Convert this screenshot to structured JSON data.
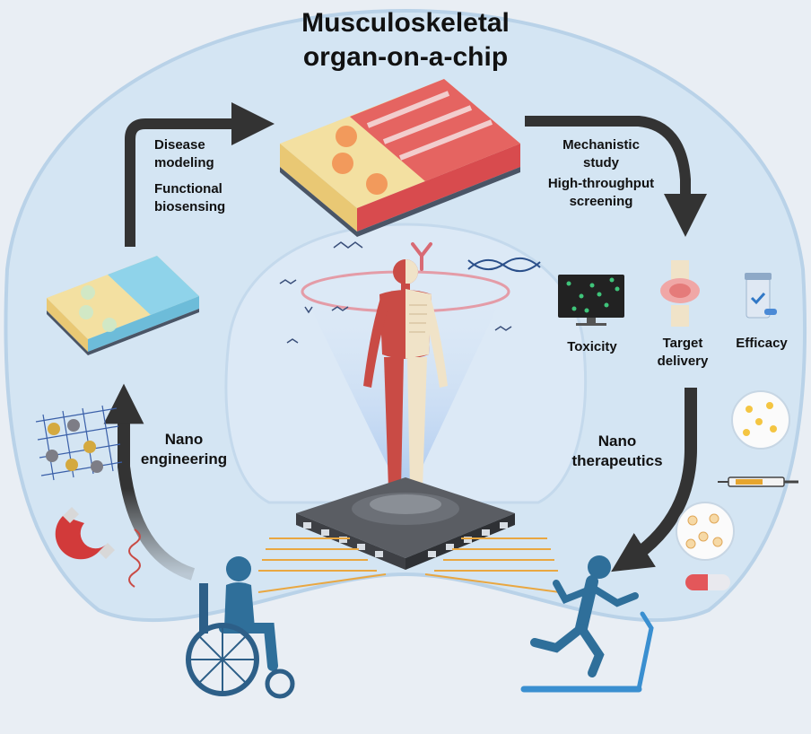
{
  "title": {
    "line1": "Musculoskeletal",
    "line2": "organ-on-a-chip"
  },
  "top_left_labels": {
    "disease_line1": "Disease",
    "disease_line2": "modeling",
    "functional_line1": "Functional",
    "functional_line2": "biosensing"
  },
  "top_right_labels": {
    "mechanistic_line1": "Mechanistic",
    "mechanistic_line2": "study",
    "screening_line1": "High-throughput",
    "screening_line2": "screening"
  },
  "outcomes": {
    "toxicity": "Toxicity",
    "target_line1": "Target",
    "target_line2": "delivery",
    "efficacy": "Efficacy"
  },
  "left_arc": {
    "line1": "Nano",
    "line2": "engineering"
  },
  "right_arc": {
    "line1": "Nano",
    "line2": "therapeutics"
  },
  "colors": {
    "background": "#e9eef4",
    "bubble": "#d3e5f3",
    "arrow": "#333333",
    "chip_yellow": "#f6df98",
    "chip_red": "#e3575a",
    "chip_blue": "#8fd3ea",
    "person": "#2f6f9a",
    "figure_muscle": "#c94b45",
    "figure_bone": "#f0e3c8",
    "wire": "#e9a741"
  },
  "icons": [
    "organ-chip-icon",
    "wheelchair-user-icon",
    "treadmill-runner-icon",
    "microchip-icon",
    "human-anatomy-icon",
    "monitor-cells-icon",
    "knee-joint-icon",
    "medicine-bottle-icon",
    "syringe-icon",
    "capsule-icon",
    "magnet-icon",
    "nanofiber-mesh-icon",
    "dna-icon",
    "antibody-icon"
  ]
}
